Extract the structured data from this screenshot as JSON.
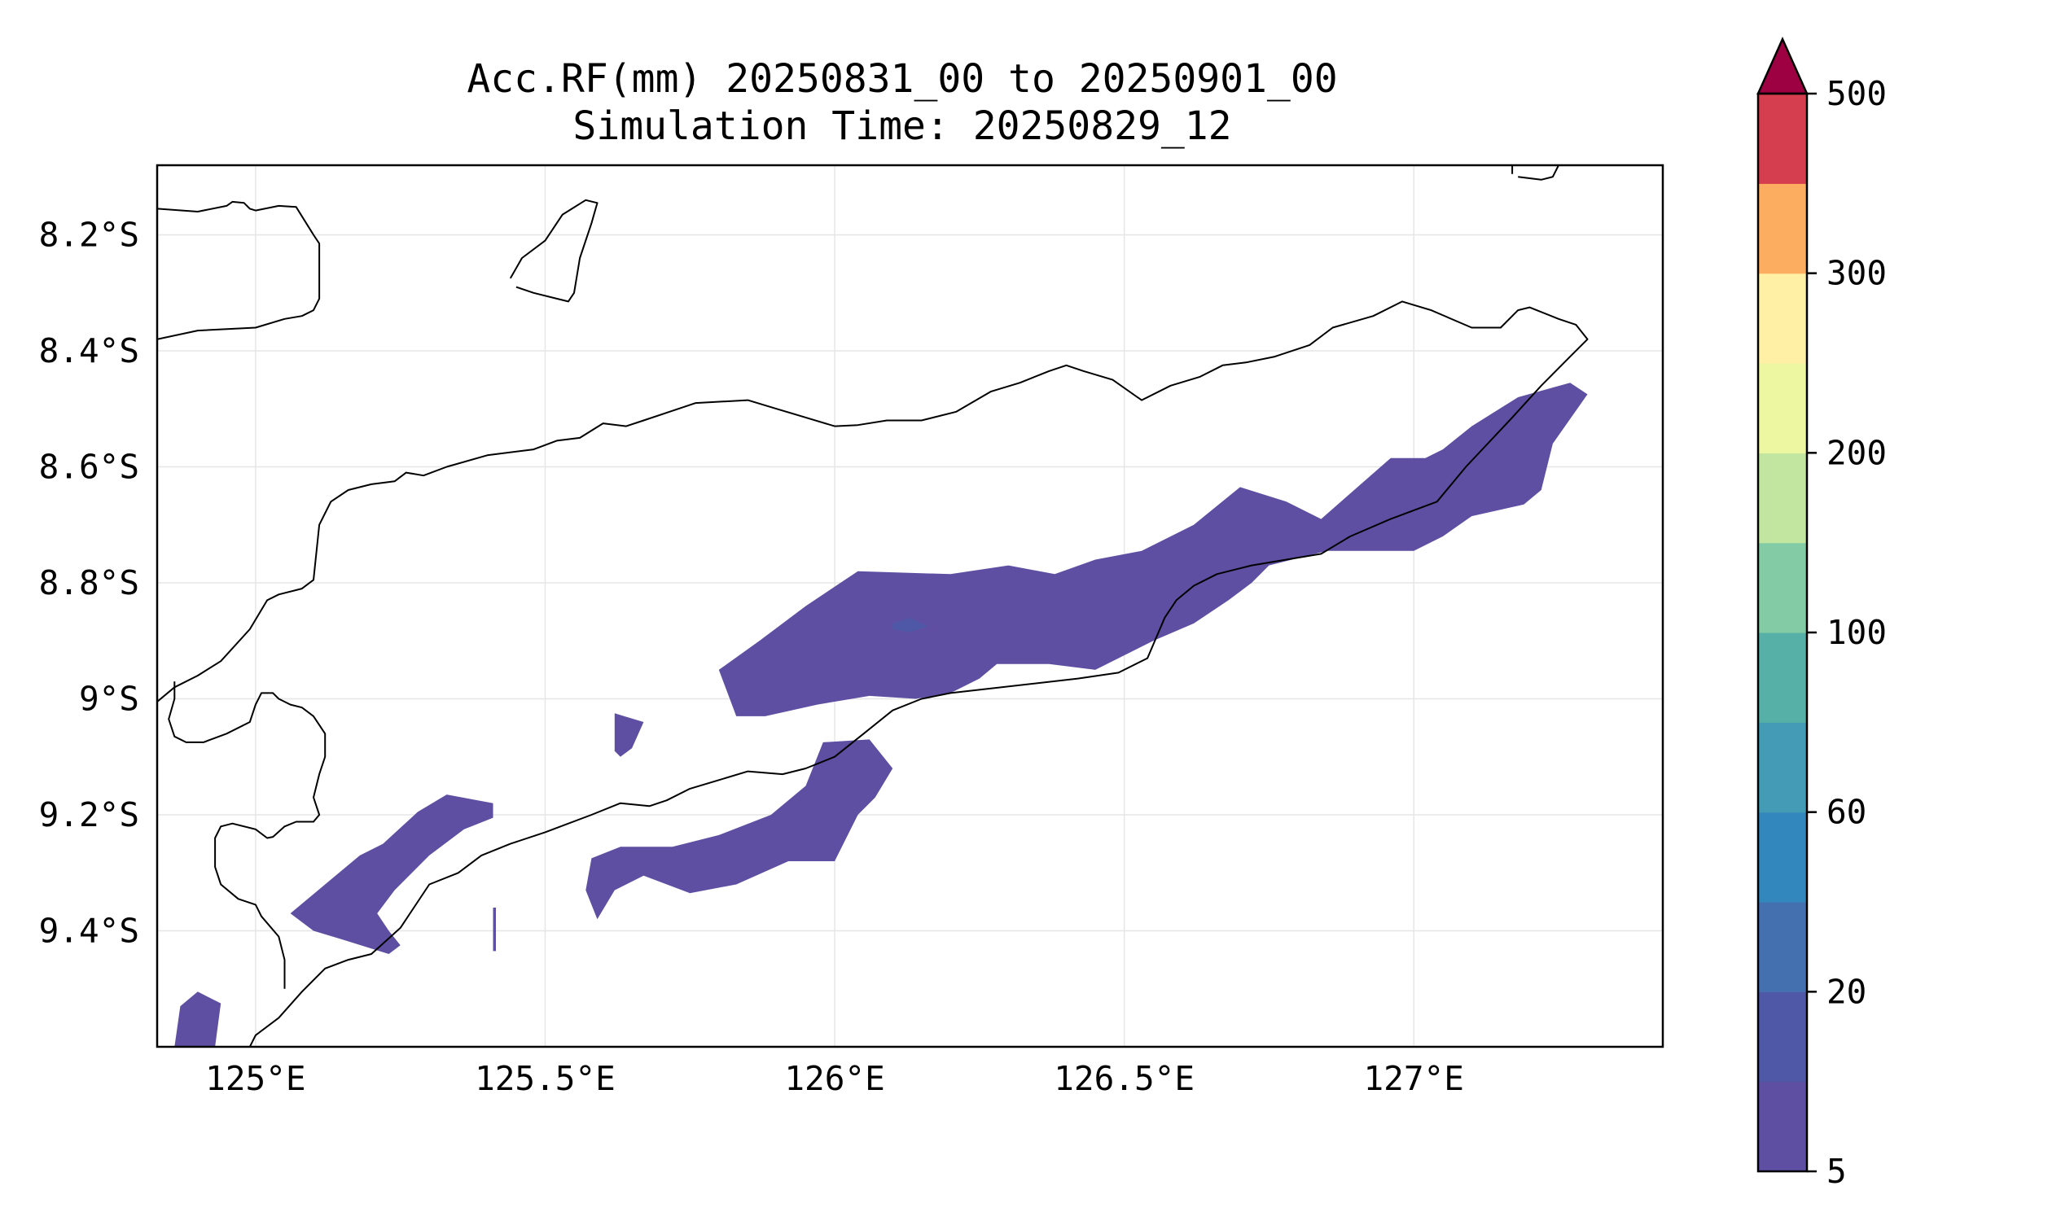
{
  "title": {
    "line1": "Acc.RF(mm) 20250831_00 to 20250901_00",
    "line2": "Simulation Time: 20250829_12"
  },
  "axes": {
    "x_ticks": [
      "125°E",
      "125.5°E",
      "126°E",
      "126.5°E",
      "127°E"
    ],
    "y_ticks": [
      "8.2°S",
      "8.4°S",
      "8.6°S",
      "8.8°S",
      "9°S",
      "9.2°S",
      "9.4°S"
    ]
  },
  "colorbar": {
    "tick_labels": [
      "5",
      "20",
      "60",
      "100",
      "200",
      "300",
      "500"
    ],
    "extend": "max",
    "extend_color": "#9e0142",
    "band_colors": [
      "#5e4fa2",
      "#4e58a6",
      "#4470b0",
      "#3288bd",
      "#439bb5",
      "#56b0a7",
      "#82cba5",
      "#c2e59f",
      "#edf7a2",
      "#fff0a5",
      "#fdad5f",
      "#d53e4f"
    ]
  },
  "chart_data": {
    "type": "heatmap",
    "variable": "Acc.RF(mm)",
    "lon_range": [
      124.83,
      127.43
    ],
    "lat_range": [
      -9.6,
      -8.08
    ],
    "levels": [
      5,
      10,
      20,
      40,
      60,
      80,
      100,
      150,
      200,
      250,
      300,
      400,
      500
    ],
    "grid": true,
    "rain_areas": [
      {
        "level_min": 5,
        "level_max": 10,
        "lonlat": [
          [
            125.8,
            -8.95
          ],
          [
            125.87,
            -8.9
          ],
          [
            125.95,
            -8.84
          ],
          [
            126.04,
            -8.78
          ],
          [
            126.2,
            -8.785
          ],
          [
            126.3,
            -8.77
          ],
          [
            126.38,
            -8.785
          ],
          [
            126.45,
            -8.76
          ],
          [
            126.53,
            -8.745
          ],
          [
            126.62,
            -8.7
          ],
          [
            126.7,
            -8.635
          ],
          [
            126.78,
            -8.66
          ],
          [
            126.84,
            -8.69
          ],
          [
            126.96,
            -8.585
          ],
          [
            127.02,
            -8.585
          ],
          [
            127.05,
            -8.57
          ],
          [
            127.1,
            -8.53
          ],
          [
            127.18,
            -8.48
          ],
          [
            127.27,
            -8.455
          ],
          [
            127.3,
            -8.475
          ],
          [
            127.24,
            -8.56
          ],
          [
            127.22,
            -8.64
          ],
          [
            127.19,
            -8.665
          ],
          [
            127.1,
            -8.685
          ],
          [
            127.05,
            -8.72
          ],
          [
            127.0,
            -8.745
          ],
          [
            126.85,
            -8.745
          ],
          [
            126.75,
            -8.77
          ],
          [
            126.72,
            -8.8
          ],
          [
            126.68,
            -8.83
          ],
          [
            126.62,
            -8.87
          ],
          [
            126.55,
            -8.9
          ],
          [
            126.45,
            -8.95
          ],
          [
            126.37,
            -8.94
          ],
          [
            126.28,
            -8.94
          ],
          [
            126.25,
            -8.965
          ],
          [
            126.2,
            -8.99
          ],
          [
            126.14,
            -9.0
          ],
          [
            126.06,
            -8.995
          ],
          [
            125.97,
            -9.01
          ],
          [
            125.88,
            -9.03
          ],
          [
            125.83,
            -9.03
          ]
        ]
      },
      {
        "level_min": 5,
        "level_max": 10,
        "lonlat": [
          [
            125.89,
            -9.2
          ],
          [
            125.95,
            -9.15
          ],
          [
            125.98,
            -9.075
          ],
          [
            126.06,
            -9.07
          ],
          [
            126.1,
            -9.12
          ],
          [
            126.07,
            -9.17
          ],
          [
            126.04,
            -9.2
          ],
          [
            126.0,
            -9.28
          ],
          [
            125.92,
            -9.28
          ],
          [
            125.83,
            -9.32
          ],
          [
            125.75,
            -9.335
          ],
          [
            125.67,
            -9.305
          ],
          [
            125.62,
            -9.33
          ],
          [
            125.59,
            -9.38
          ],
          [
            125.57,
            -9.33
          ],
          [
            125.58,
            -9.275
          ],
          [
            125.63,
            -9.255
          ],
          [
            125.72,
            -9.255
          ],
          [
            125.8,
            -9.235
          ]
        ]
      },
      {
        "level_min": 5,
        "level_max": 10,
        "lonlat": [
          [
            125.06,
            -9.37
          ],
          [
            125.12,
            -9.32
          ],
          [
            125.18,
            -9.27
          ],
          [
            125.22,
            -9.25
          ],
          [
            125.28,
            -9.195
          ],
          [
            125.33,
            -9.165
          ],
          [
            125.41,
            -9.18
          ],
          [
            125.41,
            -9.205
          ],
          [
            125.36,
            -9.225
          ],
          [
            125.3,
            -9.27
          ],
          [
            125.24,
            -9.33
          ],
          [
            125.21,
            -9.37
          ],
          [
            125.23,
            -9.4
          ],
          [
            125.25,
            -9.425
          ],
          [
            125.23,
            -9.44
          ],
          [
            125.15,
            -9.415
          ],
          [
            125.1,
            -9.4
          ]
        ]
      },
      {
        "level_min": 5,
        "level_max": 10,
        "lonlat": [
          [
            125.62,
            -9.025
          ],
          [
            125.67,
            -9.04
          ],
          [
            125.65,
            -9.085
          ],
          [
            125.63,
            -9.1
          ],
          [
            125.62,
            -9.09
          ]
        ]
      },
      {
        "level_min": 5,
        "level_max": 10,
        "lonlat": [
          [
            124.87,
            -9.53
          ],
          [
            124.9,
            -9.505
          ],
          [
            124.94,
            -9.525
          ],
          [
            124.93,
            -9.6
          ],
          [
            124.86,
            -9.6
          ]
        ]
      },
      {
        "level_min": 5,
        "level_max": 10,
        "lonlat": [
          [
            125.41,
            -9.36
          ],
          [
            125.415,
            -9.36
          ],
          [
            125.415,
            -9.435
          ],
          [
            125.41,
            -9.435
          ]
        ]
      },
      {
        "level_min": 10,
        "level_max": 20,
        "lonlat": [
          [
            126.1,
            -8.87
          ],
          [
            126.13,
            -8.86
          ],
          [
            126.16,
            -8.875
          ],
          [
            126.13,
            -8.885
          ],
          [
            126.1,
            -8.88
          ]
        ]
      }
    ],
    "coastlines": [
      [
        [
          124.83,
          -8.155
        ],
        [
          124.9,
          -8.16
        ],
        [
          124.95,
          -8.15
        ],
        [
          124.96,
          -8.143
        ],
        [
          124.98,
          -8.145
        ],
        [
          124.99,
          -8.155
        ],
        [
          125.0,
          -8.158
        ],
        [
          125.04,
          -8.15
        ],
        [
          125.07,
          -8.152
        ],
        [
          125.1,
          -8.2
        ],
        [
          125.11,
          -8.215
        ],
        [
          125.11,
          -8.31
        ],
        [
          125.1,
          -8.33
        ],
        [
          125.08,
          -8.34
        ],
        [
          125.05,
          -8.345
        ],
        [
          125.0,
          -8.36
        ],
        [
          124.9,
          -8.365
        ],
        [
          124.83,
          -8.38
        ]
      ],
      [
        [
          125.44,
          -8.275
        ],
        [
          125.46,
          -8.24
        ],
        [
          125.5,
          -8.21
        ],
        [
          125.53,
          -8.165
        ],
        [
          125.57,
          -8.14
        ],
        [
          125.59,
          -8.145
        ],
        [
          125.58,
          -8.18
        ],
        [
          125.56,
          -8.24
        ],
        [
          125.55,
          -8.3
        ],
        [
          125.54,
          -8.315
        ],
        [
          125.52,
          -8.31
        ],
        [
          125.48,
          -8.3
        ],
        [
          125.45,
          -8.29
        ]
      ],
      [
        [
          127.17,
          -8.095
        ],
        [
          127.17,
          -8.08
        ],
        [
          127.25,
          -8.08
        ],
        [
          127.24,
          -8.1
        ],
        [
          127.22,
          -8.105
        ],
        [
          127.18,
          -8.1
        ]
      ],
      [
        [
          124.83,
          -9.005
        ],
        [
          124.86,
          -8.98
        ],
        [
          124.9,
          -8.96
        ],
        [
          124.94,
          -8.935
        ],
        [
          124.99,
          -8.88
        ],
        [
          125.02,
          -8.83
        ],
        [
          125.04,
          -8.82
        ],
        [
          125.08,
          -8.81
        ],
        [
          125.1,
          -8.795
        ],
        [
          125.11,
          -8.7
        ],
        [
          125.13,
          -8.66
        ],
        [
          125.16,
          -8.64
        ],
        [
          125.2,
          -8.63
        ],
        [
          125.24,
          -8.625
        ],
        [
          125.26,
          -8.61
        ],
        [
          125.29,
          -8.615
        ],
        [
          125.33,
          -8.6
        ],
        [
          125.4,
          -8.58
        ],
        [
          125.48,
          -8.57
        ],
        [
          125.52,
          -8.555
        ],
        [
          125.56,
          -8.55
        ],
        [
          125.6,
          -8.525
        ],
        [
          125.64,
          -8.53
        ],
        [
          125.67,
          -8.52
        ],
        [
          125.76,
          -8.49
        ],
        [
          125.85,
          -8.485
        ],
        [
          125.9,
          -8.5
        ],
        [
          125.95,
          -8.515
        ],
        [
          126.0,
          -8.53
        ],
        [
          126.04,
          -8.528
        ],
        [
          126.09,
          -8.52
        ],
        [
          126.15,
          -8.52
        ],
        [
          126.21,
          -8.505
        ],
        [
          126.27,
          -8.47
        ],
        [
          126.32,
          -8.455
        ],
        [
          126.37,
          -8.435
        ],
        [
          126.4,
          -8.425
        ],
        [
          126.43,
          -8.435
        ],
        [
          126.48,
          -8.45
        ],
        [
          126.53,
          -8.485
        ],
        [
          126.58,
          -8.46
        ],
        [
          126.63,
          -8.445
        ],
        [
          126.67,
          -8.425
        ],
        [
          126.71,
          -8.42
        ],
        [
          126.76,
          -8.41
        ],
        [
          126.82,
          -8.39
        ],
        [
          126.86,
          -8.36
        ],
        [
          126.93,
          -8.34
        ],
        [
          126.98,
          -8.315
        ],
        [
          127.03,
          -8.33
        ],
        [
          127.1,
          -8.36
        ],
        [
          127.15,
          -8.36
        ],
        [
          127.18,
          -8.33
        ],
        [
          127.2,
          -8.325
        ],
        [
          127.25,
          -8.345
        ],
        [
          127.28,
          -8.355
        ],
        [
          127.3,
          -8.38
        ],
        [
          127.27,
          -8.41
        ],
        [
          127.22,
          -8.46
        ],
        [
          127.17,
          -8.515
        ],
        [
          127.09,
          -8.6
        ],
        [
          127.04,
          -8.66
        ],
        [
          127.0,
          -8.675
        ],
        [
          126.96,
          -8.69
        ],
        [
          126.89,
          -8.72
        ],
        [
          126.84,
          -8.75
        ],
        [
          126.72,
          -8.77
        ],
        [
          126.66,
          -8.785
        ],
        [
          126.62,
          -8.805
        ],
        [
          126.59,
          -8.83
        ],
        [
          126.57,
          -8.86
        ],
        [
          126.54,
          -8.93
        ],
        [
          126.49,
          -8.955
        ],
        [
          126.42,
          -8.965
        ],
        [
          126.2,
          -8.99
        ],
        [
          126.15,
          -9.0
        ],
        [
          126.1,
          -9.02
        ],
        [
          126.05,
          -9.06
        ],
        [
          126.0,
          -9.1
        ],
        [
          125.95,
          -9.12
        ],
        [
          125.91,
          -9.13
        ],
        [
          125.85,
          -9.125
        ],
        [
          125.8,
          -9.14
        ],
        [
          125.75,
          -9.155
        ],
        [
          125.71,
          -9.175
        ],
        [
          125.68,
          -9.185
        ],
        [
          125.63,
          -9.18
        ],
        [
          125.58,
          -9.2
        ],
        [
          125.5,
          -9.23
        ],
        [
          125.44,
          -9.25
        ],
        [
          125.39,
          -9.27
        ],
        [
          125.35,
          -9.3
        ],
        [
          125.3,
          -9.32
        ],
        [
          125.25,
          -9.395
        ],
        [
          125.2,
          -9.44
        ],
        [
          125.16,
          -9.45
        ],
        [
          125.12,
          -9.465
        ],
        [
          125.08,
          -9.505
        ],
        [
          125.04,
          -9.55
        ],
        [
          125.0,
          -9.58
        ],
        [
          124.99,
          -9.6
        ]
      ],
      [
        [
          125.05,
          -9.5
        ],
        [
          125.05,
          -9.45
        ],
        [
          125.04,
          -9.41
        ],
        [
          125.01,
          -9.375
        ],
        [
          125.0,
          -9.355
        ],
        [
          124.97,
          -9.345
        ],
        [
          124.94,
          -9.32
        ],
        [
          124.93,
          -9.29
        ],
        [
          124.93,
          -9.24
        ],
        [
          124.94,
          -9.22
        ],
        [
          124.96,
          -9.215
        ],
        [
          125.0,
          -9.225
        ],
        [
          125.02,
          -9.24
        ],
        [
          125.03,
          -9.238
        ],
        [
          125.05,
          -9.22
        ],
        [
          125.07,
          -9.212
        ],
        [
          125.1,
          -9.212
        ],
        [
          125.11,
          -9.2
        ],
        [
          125.1,
          -9.17
        ],
        [
          125.11,
          -9.13
        ],
        [
          125.12,
          -9.1
        ],
        [
          125.12,
          -9.06
        ],
        [
          125.1,
          -9.03
        ],
        [
          125.08,
          -9.015
        ],
        [
          125.06,
          -9.01
        ],
        [
          125.04,
          -9.0
        ],
        [
          125.03,
          -8.99
        ],
        [
          125.01,
          -8.99
        ],
        [
          125.0,
          -9.01
        ],
        [
          124.99,
          -9.04
        ],
        [
          124.95,
          -9.06
        ],
        [
          124.91,
          -9.075
        ],
        [
          124.88,
          -9.075
        ],
        [
          124.86,
          -9.065
        ],
        [
          124.85,
          -9.035
        ],
        [
          124.86,
          -9.0
        ],
        [
          124.86,
          -8.97
        ]
      ]
    ]
  }
}
